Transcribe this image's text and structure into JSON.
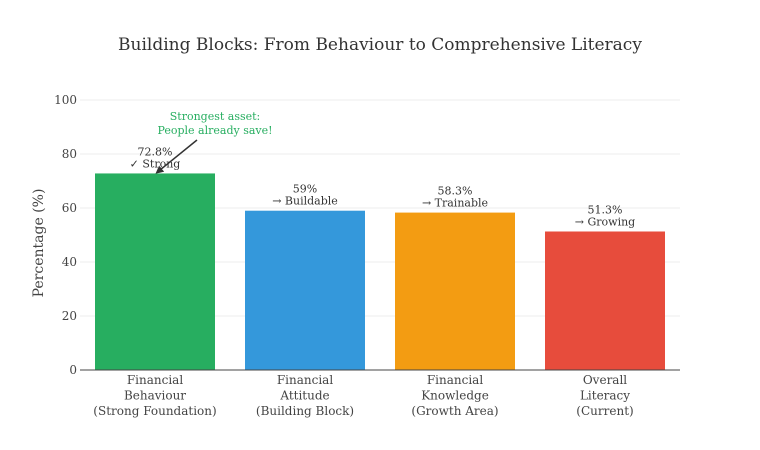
{
  "chart_data": {
    "type": "bar",
    "title": "Building Blocks: From Behaviour to Comprehensive Literacy",
    "xlabel": "",
    "ylabel": "Percentage (%)",
    "ylim": [
      0,
      100
    ],
    "yticks": [
      "0",
      "20",
      "40",
      "60",
      "80",
      "100"
    ],
    "grid": true,
    "categories": [
      [
        "Financial",
        "Behaviour",
        "(Strong Foundation)"
      ],
      [
        "Financial",
        "Attitude",
        "(Building Block)"
      ],
      [
        "Financial",
        "Knowledge",
        "(Growth Area)"
      ],
      [
        "Overall",
        "Literacy",
        "(Current)"
      ]
    ],
    "values": [
      72.8,
      59,
      58.3,
      51.3
    ],
    "data_labels": [
      [
        "72.8%",
        "✓ Strong"
      ],
      [
        "59%",
        "→ Buildable"
      ],
      [
        "58.3%",
        "→ Trainable"
      ],
      [
        "51.3%",
        "→ Growing"
      ]
    ],
    "colors": [
      "#27ae60",
      "#3498db",
      "#f39c12",
      "#e74c3c"
    ],
    "annotation": {
      "lines": [
        "Strongest asset:",
        "People already save!"
      ],
      "color": "#27ae60",
      "target_index": 0
    }
  }
}
